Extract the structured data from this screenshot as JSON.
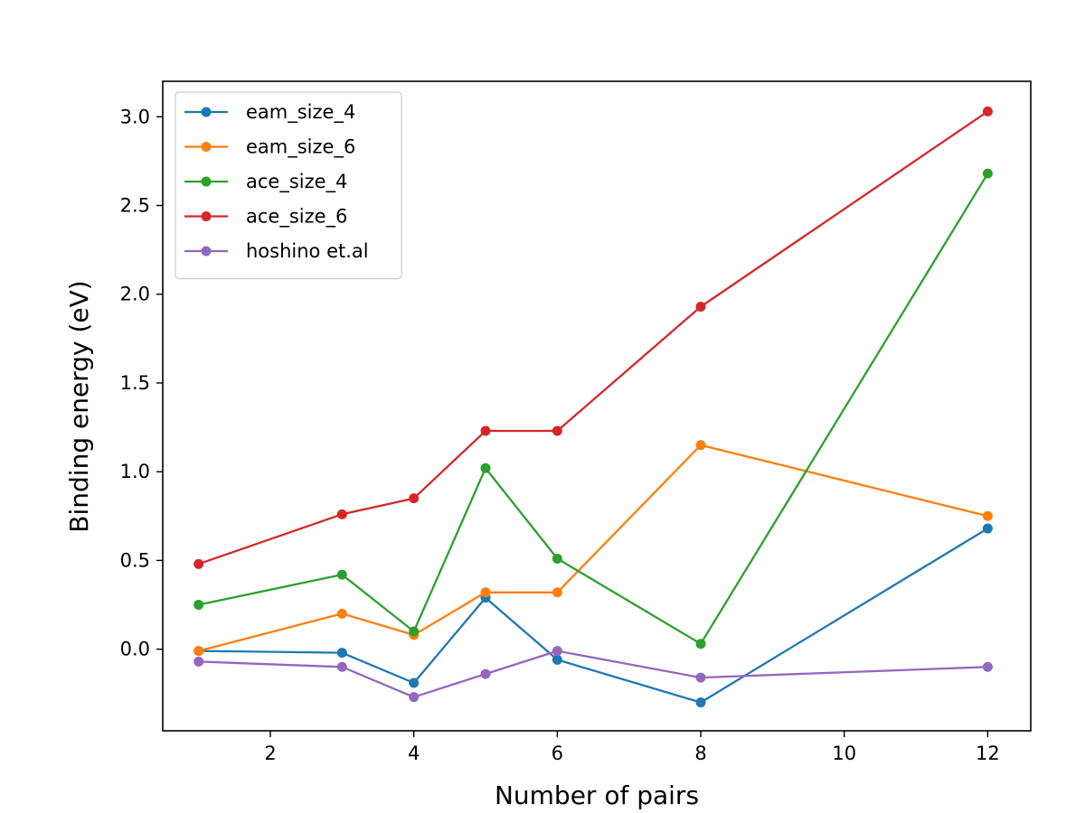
{
  "chart_data": {
    "type": "line",
    "title": "",
    "xlabel": "Number of pairs",
    "ylabel": "Binding energy (eV)",
    "x": [
      1,
      3,
      4,
      5,
      6,
      8,
      12
    ],
    "xlim": [
      0.5,
      12.6
    ],
    "ylim": [
      -0.46,
      3.2
    ],
    "xticks": [
      2,
      4,
      6,
      8,
      10,
      12
    ],
    "yticks": [
      0.0,
      0.5,
      1.0,
      1.5,
      2.0,
      2.5,
      3.0
    ],
    "xtick_labels": [
      "2",
      "4",
      "6",
      "8",
      "10",
      "12"
    ],
    "ytick_labels": [
      "0.0",
      "0.5",
      "1.0",
      "1.5",
      "2.0",
      "2.5",
      "3.0"
    ],
    "grid": false,
    "legend_position": "upper-left",
    "series": [
      {
        "name": "eam_size_4",
        "color": "#1f77b4",
        "values": [
          -0.01,
          -0.02,
          -0.19,
          0.29,
          -0.06,
          -0.3,
          0.68
        ]
      },
      {
        "name": "eam_size_6",
        "color": "#ff7f0e",
        "values": [
          -0.01,
          0.2,
          0.08,
          0.32,
          0.32,
          1.15,
          0.75
        ]
      },
      {
        "name": "ace_size_4",
        "color": "#2ca02c",
        "values": [
          0.25,
          0.42,
          0.1,
          1.02,
          0.51,
          0.03,
          2.68
        ]
      },
      {
        "name": "ace_size_6",
        "color": "#d62728",
        "values": [
          0.48,
          0.76,
          0.85,
          1.23,
          1.23,
          1.93,
          3.03
        ]
      },
      {
        "name": "hoshino et.al",
        "color": "#9467bd",
        "values": [
          -0.07,
          -0.1,
          -0.27,
          -0.14,
          -0.01,
          -0.16,
          -0.1
        ]
      }
    ]
  }
}
